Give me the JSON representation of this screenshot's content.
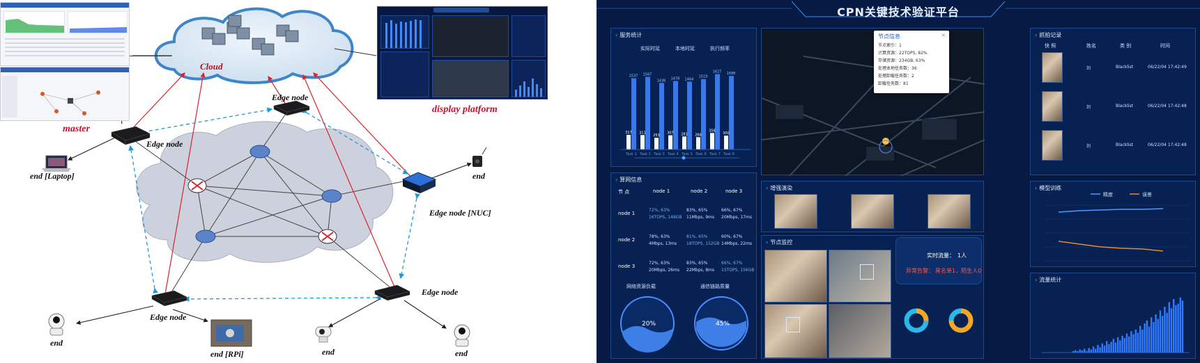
{
  "diagram": {
    "labels": {
      "cloud": "Cloud",
      "master": "master",
      "display_platform": "display platform",
      "edge_node_left": "Edge node",
      "edge_node_top": "Edge node",
      "edge_node_nuc": "Edge node [NUC]",
      "edge_node_bottom_left": "Edge node",
      "edge_node_bottom_right": "Edge node",
      "end_laptop": "end [Laptop]",
      "end_right_top": "end",
      "end_bottom_left": "end",
      "end_rpi": "end [RPi]",
      "end_bottom_mid": "end",
      "end_bottom_right": "end"
    },
    "display_title": "CPN关键技术验证平台"
  },
  "dashboard": {
    "title": "CPN关键技术验证平台",
    "service_stats": {
      "title": "服务统计",
      "legend": [
        "实际时延",
        "本地时延",
        "执行频率"
      ],
      "chart_data": {
        "type": "bar",
        "categories": [
          "Task 1",
          "Task 2",
          "Task 3",
          "Task 4",
          "Task 5",
          "Task 6",
          "Task 7",
          "Task 8",
          "Task 9"
        ],
        "series": [
          {
            "values": [
              1537,
              1567,
              1436,
              1478,
              1464,
              1519,
              1627,
              1588,
              null
            ]
          },
          {
            "values": [
              317,
              311,
              253,
              307,
              281,
              266,
              356,
              300,
              null
            ]
          }
        ]
      },
      "top_labels": [
        "1537",
        "1567",
        "1436",
        "1478",
        "1464",
        "1519",
        "1627",
        "1588"
      ],
      "bottom_labels": [
        "317",
        "311",
        "253",
        "307",
        "281",
        "266",
        "356",
        "300"
      ]
    },
    "network_info": {
      "title": "算网信息",
      "header": [
        "节 点",
        "node 1",
        "node 2",
        "node 3"
      ],
      "rows": [
        {
          "name": "node 1",
          "cells": [
            [
              "72%, 63%",
              "16TOPS, 148GB"
            ],
            [
              "83%, 65%",
              "11Mbps, 9ms"
            ],
            [
              "66%, 67%",
              "20Mbps, 17ms"
            ]
          ]
        },
        {
          "name": "node 2",
          "cells": [
            [
              "78%, 63%",
              "4Mbps, 13ms"
            ],
            [
              "81%, 65%",
              "18TOPS, 152GB"
            ],
            [
              "60%, 67%",
              "14Mbps, 22ms"
            ]
          ]
        },
        {
          "name": "node 3",
          "cells": [
            [
              "72%, 63%",
              "20Mbps, 26ms"
            ],
            [
              "83%, 65%",
              "22Mbps, 8ms"
            ],
            [
              "66%, 67%",
              "15TOPS, 156GB"
            ]
          ]
        }
      ],
      "gauge_left_title": "网络资源负载",
      "gauge_left_value": "20%",
      "gauge_right_title": "通信链路质量",
      "gauge_right_value": "45%"
    },
    "node_popup": {
      "title": "节点信息",
      "close": "×",
      "lines": [
        "节点索引：1",
        "计算资源：22TOPS, 82%",
        "存储资源：234GB, 63%",
        "处理本地任务数：36",
        "处理卸载任务数：2",
        "卸载任务数：81"
      ]
    },
    "enhance_title": "增强演染",
    "monitor_title": "节点监控",
    "realtime": {
      "flow_label": "实时流量：",
      "flow_value": "1人",
      "alarm_label": "异常告警：",
      "alarm_value": "黑名单1，陌生人0"
    },
    "alarm_log": {
      "title": "抓拍记录",
      "headers": [
        "快 照",
        "姓名",
        "类 别",
        "时间"
      ],
      "rows": [
        {
          "name": "刘",
          "category": "Blacklist",
          "time": "06/22/04 17:42:49"
        },
        {
          "name": "刘",
          "category": "Blacklist",
          "time": "06/22/04 17:42:48"
        },
        {
          "name": "刘",
          "category": "Blacklist",
          "time": "06/22/04 17:42:48"
        }
      ]
    },
    "model_training": {
      "title": "模型训练",
      "legend": [
        "精度",
        "误差"
      ]
    },
    "flow_stats": {
      "title": "流量统计"
    },
    "colors": {
      "accent": "#3a8dff",
      "highlight": "#6fb0ff",
      "alarm": "#ff5a3c",
      "precision_line": "#4d9bff",
      "error_line": "#e8892b"
    }
  }
}
